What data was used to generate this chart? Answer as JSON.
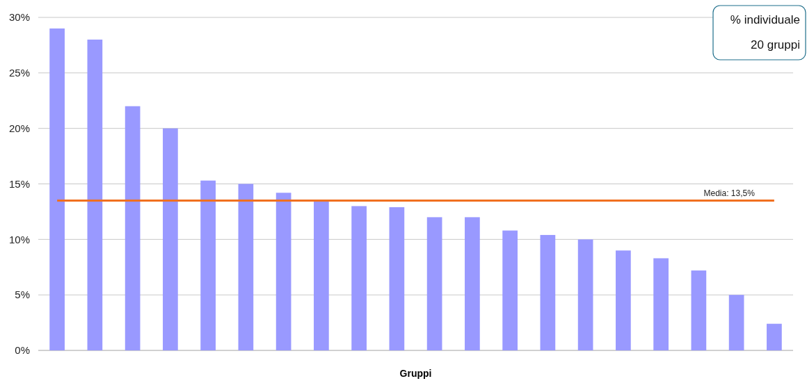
{
  "chart_data": {
    "type": "bar",
    "xlabel": "Gruppi",
    "categories": [
      null,
      null,
      null,
      null,
      null,
      null,
      null,
      null,
      null,
      null,
      null,
      null,
      null,
      null,
      null,
      null,
      null,
      null,
      null,
      null
    ],
    "values": [
      29.0,
      28.0,
      22.0,
      20.0,
      15.3,
      15.0,
      14.2,
      13.5,
      13.0,
      12.9,
      12.0,
      12.0,
      10.8,
      10.4,
      10.0,
      9.0,
      8.3,
      7.2,
      5.0,
      2.4
    ],
    "color": "#9999ff",
    "ylim": [
      0,
      30
    ],
    "yticks": [
      {
        "value": 0,
        "label": "0%"
      },
      {
        "value": 5,
        "label": "5%"
      },
      {
        "value": 10,
        "label": "10%"
      },
      {
        "value": 15,
        "label": "15%"
      },
      {
        "value": 20,
        "label": "20%"
      },
      {
        "value": 25,
        "label": "25%"
      },
      {
        "value": 30,
        "label": "30%"
      }
    ],
    "grid": "y",
    "tick_labels": "y",
    "ref_lines": [
      {
        "axis": "y",
        "value": 13.5,
        "label": "Media: 13,5%",
        "color": "#f07020"
      }
    ],
    "annotations": [
      "% individuale",
      "20 gruppi"
    ]
  }
}
